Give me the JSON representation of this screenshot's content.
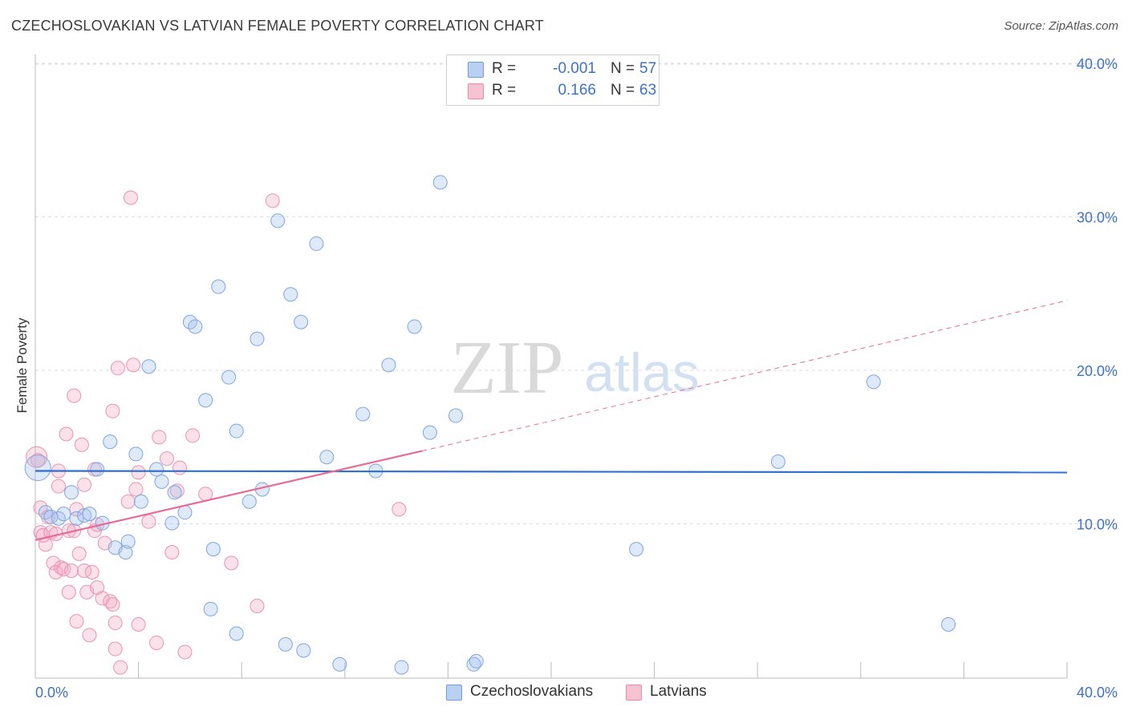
{
  "header": {
    "title": "CZECHOSLOVAKIAN VS LATVIAN FEMALE POVERTY CORRELATION CHART",
    "source": "Source: ZipAtlas.com"
  },
  "watermark": {
    "zip": "ZIP",
    "atlas": "atlas"
  },
  "legend": {
    "r_label": "R =",
    "n_label": "N =",
    "series": [
      {
        "name": "Czechoslovakians",
        "r": "-0.001",
        "n": "57",
        "fill": "#b9d0f3",
        "stroke": "#6f9de0"
      },
      {
        "name": "Latvians",
        "r": "0.166",
        "n": "63",
        "fill": "#f7c3d3",
        "stroke": "#e88aa8"
      }
    ]
  },
  "colors": {
    "blue_point_fill": "rgba(160,192,238,0.35)",
    "blue_point_stroke": "#7ea6e2",
    "pink_point_fill": "rgba(244,170,195,0.35)",
    "pink_point_stroke": "#ea93b0",
    "blue_line": "#2f6fd0",
    "pink_line": "#e56c96",
    "tick_text": "#3d72c9",
    "grid": "#dddddd"
  },
  "chart_data": {
    "type": "scatter",
    "title": "CZECHOSLOVAKIAN VS LATVIAN FEMALE POVERTY CORRELATION CHART",
    "xlabel": "",
    "ylabel": "Female Poverty",
    "xlim": [
      0,
      40
    ],
    "ylim": [
      0,
      40
    ],
    "x_tick_labels": [
      "0.0%",
      "40.0%"
    ],
    "y_ticks": [
      10,
      20,
      30,
      40
    ],
    "y_tick_labels": [
      "10.0%",
      "20.0%",
      "30.0%",
      "40.0%"
    ],
    "grid": true,
    "legend_position": "top-center",
    "series": [
      {
        "name": "Czechoslovakians",
        "points": [
          [
            0.1,
            13.7
          ],
          [
            0.4,
            10.8
          ],
          [
            0.6,
            10.5
          ],
          [
            0.9,
            10.4
          ],
          [
            1.1,
            10.7
          ],
          [
            1.4,
            12.1
          ],
          [
            1.6,
            10.4
          ],
          [
            1.9,
            10.6
          ],
          [
            2.1,
            10.7
          ],
          [
            2.4,
            13.6
          ],
          [
            2.6,
            10.1
          ],
          [
            2.9,
            15.4
          ],
          [
            3.1,
            8.5
          ],
          [
            3.5,
            8.2
          ],
          [
            3.6,
            8.9
          ],
          [
            3.9,
            14.6
          ],
          [
            4.1,
            11.5
          ],
          [
            4.4,
            20.3
          ],
          [
            4.7,
            13.6
          ],
          [
            4.9,
            12.8
          ],
          [
            5.3,
            10.1
          ],
          [
            5.4,
            12.1
          ],
          [
            5.8,
            10.8
          ],
          [
            6.0,
            23.2
          ],
          [
            6.2,
            22.9
          ],
          [
            6.6,
            18.1
          ],
          [
            6.8,
            4.5
          ],
          [
            6.9,
            8.4
          ],
          [
            7.1,
            25.5
          ],
          [
            7.5,
            19.6
          ],
          [
            7.8,
            16.1
          ],
          [
            7.8,
            2.9
          ],
          [
            8.3,
            11.5
          ],
          [
            8.6,
            22.1
          ],
          [
            8.8,
            12.3
          ],
          [
            9.4,
            29.8
          ],
          [
            9.7,
            2.2
          ],
          [
            9.9,
            25.0
          ],
          [
            10.3,
            23.2
          ],
          [
            10.4,
            1.8
          ],
          [
            10.9,
            28.3
          ],
          [
            11.3,
            14.4
          ],
          [
            11.8,
            0.9
          ],
          [
            12.7,
            17.2
          ],
          [
            13.2,
            13.5
          ],
          [
            13.7,
            20.4
          ],
          [
            14.2,
            0.7
          ],
          [
            14.7,
            22.9
          ],
          [
            15.3,
            16.0
          ],
          [
            15.7,
            32.3
          ],
          [
            16.3,
            17.1
          ],
          [
            17.0,
            0.9
          ],
          [
            17.1,
            1.1
          ],
          [
            23.3,
            8.4
          ],
          [
            28.8,
            14.1
          ],
          [
            32.5,
            19.3
          ],
          [
            35.4,
            3.5
          ]
        ]
      },
      {
        "name": "Latvians",
        "points": [
          [
            0.1,
            14.2
          ],
          [
            0.2,
            11.1
          ],
          [
            0.2,
            9.5
          ],
          [
            0.3,
            9.3
          ],
          [
            0.4,
            8.7
          ],
          [
            0.5,
            10.5
          ],
          [
            0.6,
            9.5
          ],
          [
            0.7,
            7.5
          ],
          [
            0.8,
            9.4
          ],
          [
            0.8,
            6.9
          ],
          [
            0.9,
            12.5
          ],
          [
            0.9,
            13.5
          ],
          [
            1.0,
            7.2
          ],
          [
            1.1,
            7.1
          ],
          [
            1.2,
            15.9
          ],
          [
            1.3,
            9.6
          ],
          [
            1.3,
            5.6
          ],
          [
            1.4,
            7.0
          ],
          [
            1.5,
            9.6
          ],
          [
            1.5,
            18.4
          ],
          [
            1.6,
            3.7
          ],
          [
            1.6,
            11.0
          ],
          [
            1.7,
            8.1
          ],
          [
            1.8,
            15.2
          ],
          [
            1.9,
            12.6
          ],
          [
            1.9,
            7.0
          ],
          [
            2.0,
            5.6
          ],
          [
            2.1,
            2.8
          ],
          [
            2.2,
            6.9
          ],
          [
            2.3,
            9.6
          ],
          [
            2.3,
            13.6
          ],
          [
            2.4,
            5.9
          ],
          [
            2.4,
            10.0
          ],
          [
            2.6,
            5.2
          ],
          [
            2.7,
            8.8
          ],
          [
            2.9,
            5.0
          ],
          [
            3.0,
            17.4
          ],
          [
            3.0,
            4.8
          ],
          [
            3.1,
            3.6
          ],
          [
            3.1,
            1.9
          ],
          [
            3.2,
            20.2
          ],
          [
            3.3,
            0.7
          ],
          [
            3.6,
            11.5
          ],
          [
            3.7,
            31.3
          ],
          [
            3.8,
            20.4
          ],
          [
            3.9,
            12.3
          ],
          [
            4.0,
            13.4
          ],
          [
            4.0,
            3.5
          ],
          [
            4.4,
            10.2
          ],
          [
            4.7,
            2.3
          ],
          [
            4.8,
            15.7
          ],
          [
            5.1,
            14.3
          ],
          [
            5.3,
            8.2
          ],
          [
            5.5,
            12.2
          ],
          [
            5.6,
            13.7
          ],
          [
            5.8,
            1.7
          ],
          [
            6.1,
            15.8
          ],
          [
            6.6,
            12.0
          ],
          [
            7.6,
            7.5
          ],
          [
            8.6,
            4.7
          ],
          [
            9.2,
            31.1
          ],
          [
            14.1,
            11.0
          ],
          [
            0.05,
            14.4
          ]
        ]
      }
    ],
    "trendlines": [
      {
        "series": "Czechoslovakians",
        "x": [
          0,
          40
        ],
        "y": [
          13.5,
          13.4
        ],
        "style": "solid"
      },
      {
        "series": "Latvians",
        "x": [
          0,
          15
        ],
        "y": [
          9.0,
          14.8
        ],
        "style": "solid"
      },
      {
        "series": "Latvians",
        "x": [
          15,
          40
        ],
        "y": [
          14.8,
          24.6
        ],
        "style": "dashed"
      }
    ]
  }
}
